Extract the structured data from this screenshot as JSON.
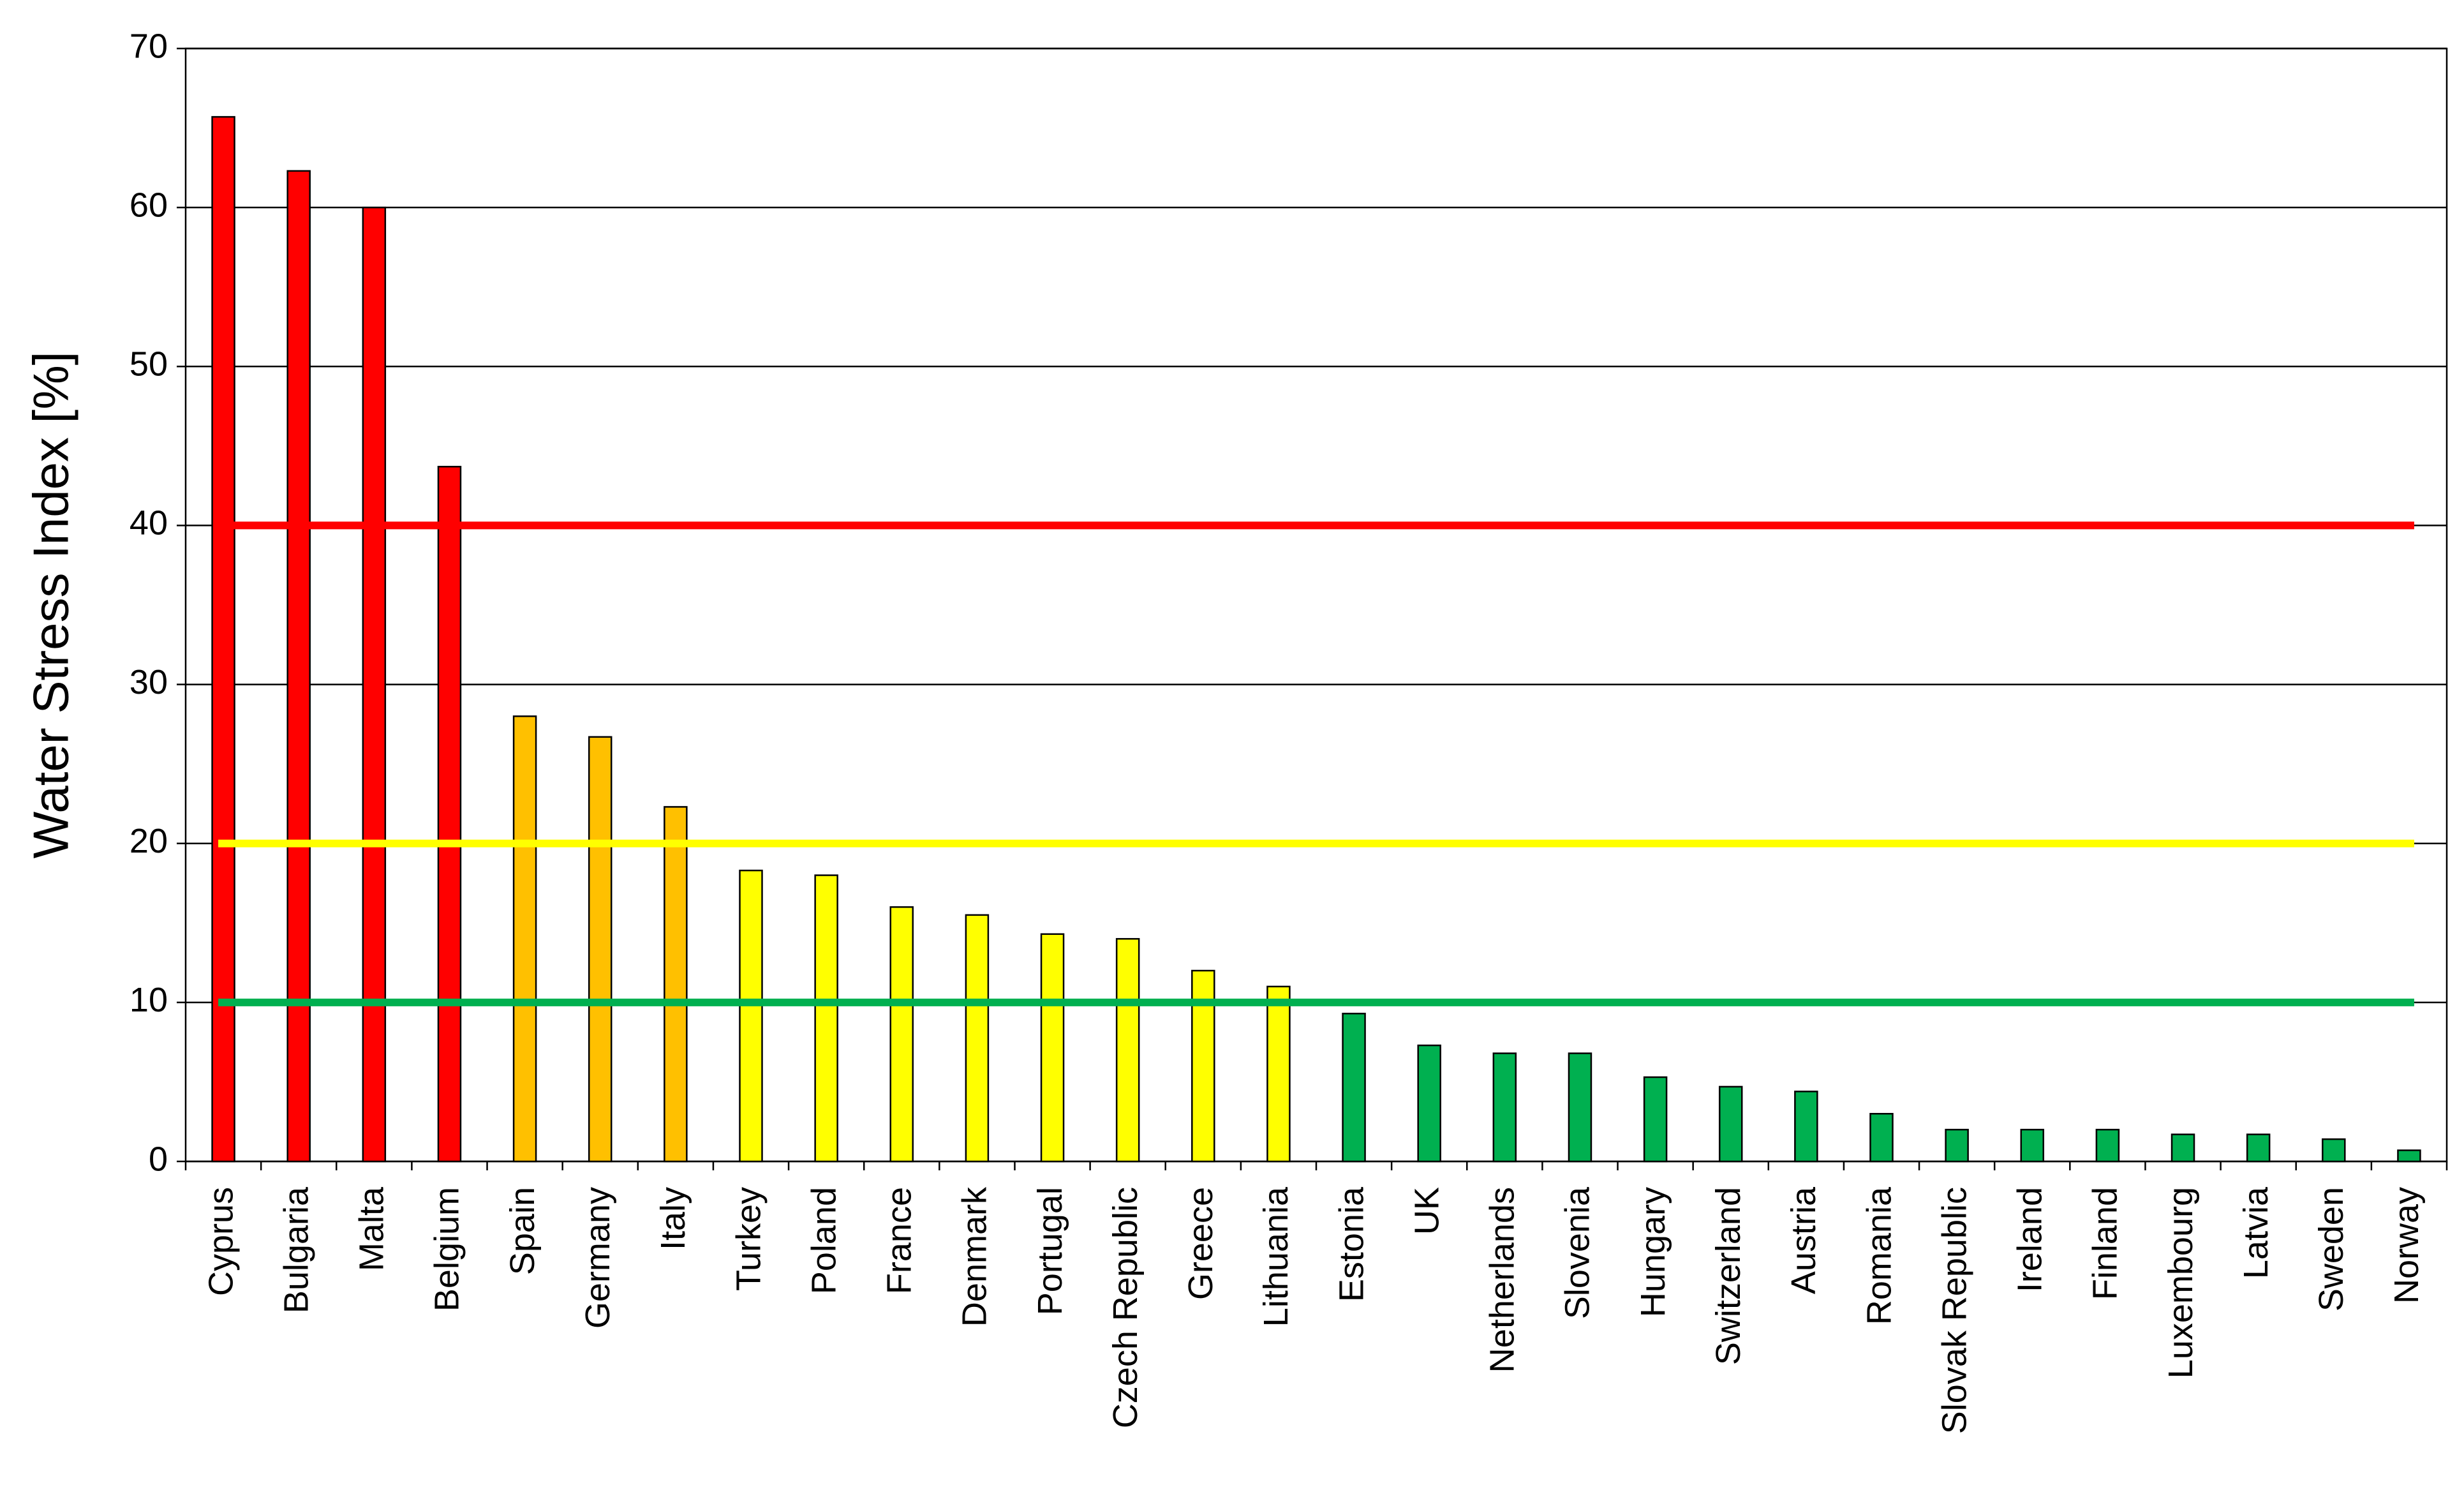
{
  "chart_data": {
    "type": "bar",
    "y_label": "Water Stress Index [%]",
    "categories": [
      "Cyprus",
      "Bulgaria",
      "Malta",
      "Belgium",
      "Spain",
      "Germany",
      "Italy",
      "Turkey",
      "Poland",
      "France",
      "Denmark",
      "Portugal",
      "Czech Republic",
      "Greece",
      "Lithuania",
      "Estonia",
      "UK",
      "Netherlands",
      "Slovenia",
      "Hungary",
      "Switzerland",
      "Austria",
      "Romania",
      "Slovak Republic",
      "Ireland",
      "Finland",
      "Luxembourg",
      "Latvia",
      "Sweden",
      "Norway"
    ],
    "values": [
      65.7,
      62.3,
      60,
      43.7,
      28,
      26.7,
      22.3,
      18.3,
      18,
      16,
      15.5,
      14.3,
      14,
      12,
      11,
      9.3,
      7.3,
      6.8,
      6.8,
      5.3,
      4.7,
      4.4,
      3,
      2,
      2,
      2,
      1.7,
      1.7,
      1.4,
      0.7
    ],
    "colors": [
      "#ff0000",
      "#ff0000",
      "#ff0000",
      "#ff0000",
      "#ffc000",
      "#ffc000",
      "#ffc000",
      "#ffff00",
      "#ffff00",
      "#ffff00",
      "#ffff00",
      "#ffff00",
      "#ffff00",
      "#ffff00",
      "#ffff00",
      "#00b050",
      "#00b050",
      "#00b050",
      "#00b050",
      "#00b050",
      "#00b050",
      "#00b050",
      "#00b050",
      "#00b050",
      "#00b050",
      "#00b050",
      "#00b050",
      "#00b050",
      "#00b050",
      "#00b050"
    ],
    "reference_lines": [
      {
        "value": 40,
        "color": "#ff0000"
      },
      {
        "value": 20,
        "color": "#ffff00"
      },
      {
        "value": 10,
        "color": "#00b050"
      }
    ],
    "ylim": [
      0,
      70
    ],
    "yticks": [
      0,
      10,
      20,
      30,
      40,
      50,
      60,
      70
    ],
    "grid": true
  }
}
